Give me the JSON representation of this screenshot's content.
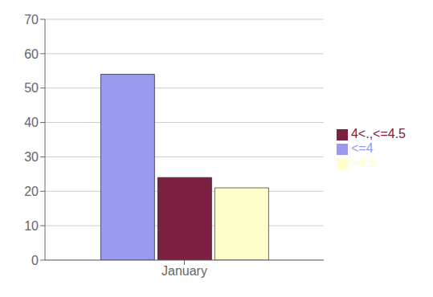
{
  "chart_data": {
    "type": "bar",
    "categories": [
      "January"
    ],
    "series": [
      {
        "name": "<=4",
        "color": "#9999ee",
        "values": [
          54
        ]
      },
      {
        "name": "4<.,<=4.5",
        "color": "#7b2040",
        "values": [
          24
        ]
      },
      {
        "name": ">4.5",
        "color": "#ffffcc",
        "values": [
          21
        ]
      }
    ],
    "ylim": [
      0,
      70
    ],
    "yticks": [
      0,
      10,
      20,
      30,
      40,
      50,
      60,
      70
    ],
    "grid": true,
    "legend": "right"
  }
}
